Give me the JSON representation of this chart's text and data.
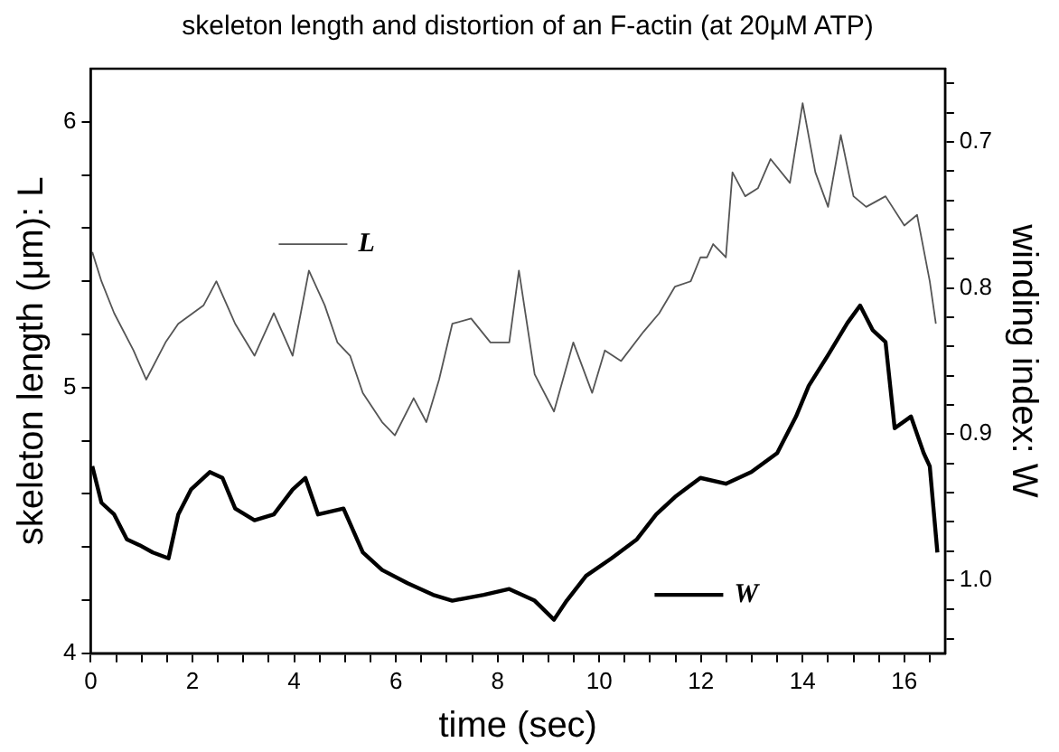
{
  "chart_data": {
    "type": "line",
    "title": "skeleton length and distortion of an F-actin (at 20μM ATP)",
    "xlabel": "time (sec)",
    "ylabel": "skeleton length (μm): L",
    "y2label": "winding index: W",
    "xlim": [
      0,
      16.8
    ],
    "ylim": [
      4,
      6.2
    ],
    "y2lim": [
      1.05,
      0.65
    ],
    "xticks": [
      0,
      {
        "value": 0.5,
        "label": null
      },
      2,
      {
        "value": 1,
        "label": null
      },
      {
        "value": 1.5,
        "label": null
      },
      {
        "value": 2.5,
        "label": null
      },
      {
        "value": 3,
        "label": null
      },
      {
        "value": 3.5,
        "label": null
      },
      4,
      {
        "value": 4.5,
        "label": null
      },
      {
        "value": 5,
        "label": null
      },
      {
        "value": 5.5,
        "label": null
      },
      6,
      {
        "value": 6.5,
        "label": null
      },
      {
        "value": 7,
        "label": null
      },
      {
        "value": 7.5,
        "label": null
      },
      8,
      {
        "value": 8.5,
        "label": null
      },
      {
        "value": 9,
        "label": null
      },
      {
        "value": 9.5,
        "label": null
      },
      10,
      {
        "value": 10.5,
        "label": null
      },
      {
        "value": 11,
        "label": null
      },
      {
        "value": 11.5,
        "label": null
      },
      12,
      {
        "value": 12.5,
        "label": null
      },
      {
        "value": 13,
        "label": null
      },
      {
        "value": 13.5,
        "label": null
      },
      14,
      {
        "value": 14.5,
        "label": null
      },
      {
        "value": 15,
        "label": null
      },
      {
        "value": 15.5,
        "label": null
      },
      16,
      {
        "value": 16.5,
        "label": null
      }
    ],
    "yticks": [
      4,
      {
        "value": 4.2,
        "label": null
      },
      {
        "value": 4.4,
        "label": null
      },
      {
        "value": 4.6,
        "label": null
      },
      {
        "value": 4.8,
        "label": null
      },
      5,
      {
        "value": 5.2,
        "label": null
      },
      {
        "value": 5.4,
        "label": null
      },
      {
        "value": 5.6,
        "label": null
      },
      {
        "value": 5.8,
        "label": null
      },
      6
    ],
    "y2ticks": [
      0.7,
      {
        "value": 0.72,
        "label": null
      },
      {
        "value": 0.74,
        "label": null
      },
      {
        "value": 0.76,
        "label": null
      },
      {
        "value": 0.78,
        "label": null
      },
      0.8,
      {
        "value": 0.82,
        "label": null
      },
      {
        "value": 0.84,
        "label": null
      },
      {
        "value": 0.86,
        "label": null
      },
      {
        "value": 0.88,
        "label": null
      },
      0.9,
      {
        "value": 0.92,
        "label": null
      },
      {
        "value": 0.94,
        "label": null
      },
      {
        "value": 0.96,
        "label": null
      },
      {
        "value": 0.98,
        "label": null
      },
      {
        "value": 1.0,
        "label": "1.0"
      },
      {
        "value": 1.02,
        "label": null
      },
      {
        "value": 1.04,
        "label": null
      },
      {
        "value": 0.68,
        "label": null
      },
      {
        "value": 0.66,
        "label": null
      }
    ],
    "grid": false,
    "legend": "center",
    "marker": "none",
    "line_style": "solid",
    "series": [
      {
        "name": "L",
        "color": "#555555",
        "x": [
          0.03,
          0.21,
          0.46,
          0.84,
          1.09,
          1.47,
          1.72,
          2.22,
          2.47,
          2.84,
          3.22,
          3.6,
          3.97,
          4.29,
          4.6,
          4.85,
          5.1,
          5.35,
          5.73,
          5.98,
          6.35,
          6.6,
          6.85,
          7.11,
          7.48,
          7.86,
          8.23,
          8.42,
          8.73,
          9.11,
          9.49,
          9.86,
          10.11,
          10.43,
          10.87,
          11.18,
          11.49,
          11.8,
          11.99,
          12.12,
          12.24,
          12.49,
          12.62,
          12.87,
          13.12,
          13.37,
          13.75,
          14.0,
          14.25,
          14.5,
          14.75,
          15.0,
          15.25,
          15.63,
          16.0,
          16.25,
          16.5,
          16.62
        ],
        "values": [
          5.51,
          5.4,
          5.28,
          5.14,
          5.03,
          5.17,
          5.24,
          5.31,
          5.4,
          5.24,
          5.12,
          5.28,
          5.12,
          5.44,
          5.31,
          5.17,
          5.12,
          4.98,
          4.87,
          4.82,
          4.96,
          4.87,
          5.03,
          5.24,
          5.26,
          5.17,
          5.17,
          5.44,
          5.05,
          4.91,
          5.17,
          4.98,
          5.14,
          5.1,
          5.21,
          5.28,
          5.38,
          5.4,
          5.49,
          5.49,
          5.54,
          5.49,
          5.81,
          5.72,
          5.75,
          5.86,
          5.77,
          6.07,
          5.81,
          5.68,
          5.95,
          5.72,
          5.68,
          5.72,
          5.61,
          5.65,
          5.4,
          5.24
        ]
      },
      {
        "name": "W",
        "color": "#000000",
        "axis": "y2",
        "x": [
          0.03,
          0.21,
          0.46,
          0.71,
          0.96,
          1.22,
          1.53,
          1.72,
          1.97,
          2.34,
          2.59,
          2.84,
          3.22,
          3.6,
          3.97,
          4.22,
          4.47,
          4.97,
          5.35,
          5.73,
          6.23,
          6.73,
          7.11,
          7.73,
          8.23,
          8.73,
          9.11,
          9.36,
          9.74,
          10.24,
          10.74,
          11.12,
          11.49,
          11.99,
          12.49,
          12.99,
          13.5,
          13.87,
          14.12,
          14.5,
          14.88,
          15.13,
          15.38,
          15.63,
          15.81,
          16.13,
          16.38,
          16.5,
          16.65
        ],
        "values": [
          0.922,
          0.947,
          0.955,
          0.972,
          0.976,
          0.981,
          0.985,
          0.955,
          0.938,
          0.926,
          0.93,
          0.951,
          0.959,
          0.955,
          0.938,
          0.93,
          0.955,
          0.951,
          0.981,
          0.993,
          1.002,
          1.01,
          1.014,
          1.01,
          1.006,
          1.014,
          1.027,
          1.014,
          0.997,
          0.985,
          0.972,
          0.955,
          0.943,
          0.93,
          0.934,
          0.926,
          0.913,
          0.888,
          0.867,
          0.846,
          0.824,
          0.812,
          0.829,
          0.837,
          0.896,
          0.888,
          0.913,
          0.922,
          0.981
        ]
      }
    ]
  }
}
